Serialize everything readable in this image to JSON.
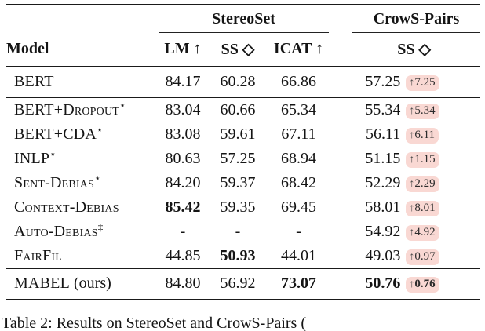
{
  "table": {
    "group_headers": {
      "stereoset": "StereoSet",
      "crows_pairs": "CrowS-Pairs"
    },
    "col_headers": {
      "model": "Model",
      "lm": "LM ↑",
      "ss": "SS ◇",
      "icat": "ICAT ↑",
      "cs_ss": "SS ◇"
    },
    "arrow": "↑",
    "rows": [
      {
        "model": "BERT",
        "sup": "",
        "suffix": "",
        "lm": "84.17",
        "ss": "60.28",
        "icat": "66.86",
        "cs": "57.25",
        "delta": "7.25"
      },
      {
        "model": "BERT+Dropout",
        "sup": "⋆",
        "suffix": "",
        "lm": "83.04",
        "ss": "60.66",
        "icat": "65.34",
        "cs": "55.34",
        "delta": "5.34"
      },
      {
        "model": "BERT+CDA",
        "sup": "⋆",
        "suffix": "",
        "lm": "83.08",
        "ss": "59.61",
        "icat": "67.11",
        "cs": "56.11",
        "delta": "6.11"
      },
      {
        "model": "INLP",
        "sup": "⋆",
        "suffix": "",
        "lm": "80.63",
        "ss": "57.25",
        "icat": "68.94",
        "cs": "51.15",
        "delta": "1.15"
      },
      {
        "model": "Sent-Debias",
        "sup": "⋆",
        "suffix": "",
        "lm": "84.20",
        "ss": "59.37",
        "icat": "68.42",
        "cs": "52.29",
        "delta": "2.29"
      },
      {
        "model": "Context-Debias",
        "sup": "",
        "suffix": "",
        "lm": "85.42",
        "ss": "59.35",
        "icat": "69.45",
        "cs": "58.01",
        "delta": "8.01"
      },
      {
        "model": "Auto-Debias",
        "sup": "‡",
        "suffix": "",
        "lm": "-",
        "ss": "-",
        "icat": "-",
        "cs": "54.92",
        "delta": "4.92"
      },
      {
        "model": "FairFil",
        "sup": "",
        "suffix": "",
        "lm": "44.85",
        "ss": "50.93",
        "icat": "44.01",
        "cs": "49.03",
        "delta": "0.97"
      },
      {
        "model": "MABEL",
        "sup": "",
        "suffix": " (ours)",
        "lm": "84.80",
        "ss": "56.92",
        "icat": "73.07",
        "cs": "50.76",
        "delta": "0.76"
      }
    ]
  },
  "caption": {
    "text": "Table 2: Results on StereoSet and CrowS-Pairs ("
  },
  "colors": {
    "badge_background": "#f9d8d3",
    "rule": "#1a1a1a",
    "text": "#141414"
  }
}
